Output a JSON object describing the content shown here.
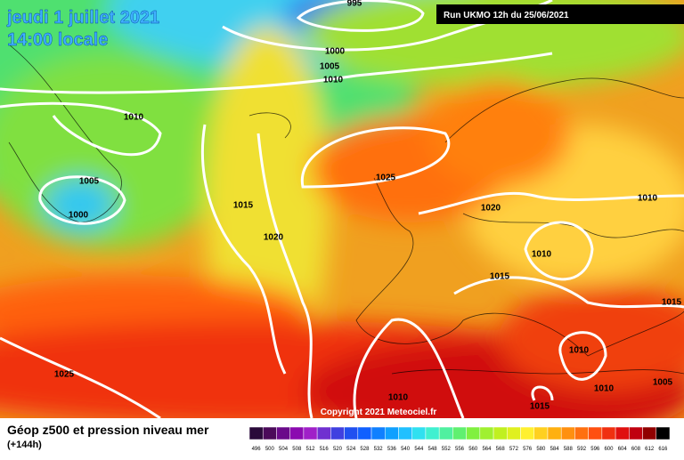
{
  "header": {
    "date": "jeudi 1 juillet 2021",
    "time": "14:00 locale",
    "run": "Run UKMO 12h du 25/06/2021"
  },
  "isobar_labels": [
    "995",
    "1000",
    "1005",
    "1010",
    "1010",
    "1005",
    "1000",
    "1025",
    "1020",
    "1015",
    "1020",
    "1010",
    "1010",
    "1015",
    "1015",
    "1010",
    "1010",
    "1005",
    "1025",
    "1010",
    "1015"
  ],
  "copyright": "Copyright 2021 Meteociel.fr",
  "footer": {
    "title": "Géop z500 et pression niveau mer",
    "lead": "(+144h)"
  },
  "colorbar": {
    "ticks": [
      496,
      500,
      504,
      508,
      512,
      516,
      520,
      524,
      528,
      532,
      536,
      540,
      544,
      548,
      552,
      556,
      560,
      564,
      568,
      572,
      576,
      580,
      584,
      588,
      592,
      596,
      600,
      604,
      608,
      612,
      616
    ],
    "colors": [
      "#2a0a3a",
      "#4b0a5a",
      "#6a0a8a",
      "#8b0ab0",
      "#a020c8",
      "#7030d0",
      "#4040e0",
      "#2050f0",
      "#1060ff",
      "#1080ff",
      "#10a0ff",
      "#20c0ff",
      "#30e0f0",
      "#40f0d0",
      "#50f0a0",
      "#60f070",
      "#80f040",
      "#a0f030",
      "#c0f020",
      "#e0f020",
      "#fff030",
      "#ffd020",
      "#ffb010",
      "#ff9010",
      "#ff7010",
      "#ff5010",
      "#f03010",
      "#e01010",
      "#c00010",
      "#900000",
      "#000000"
    ]
  }
}
